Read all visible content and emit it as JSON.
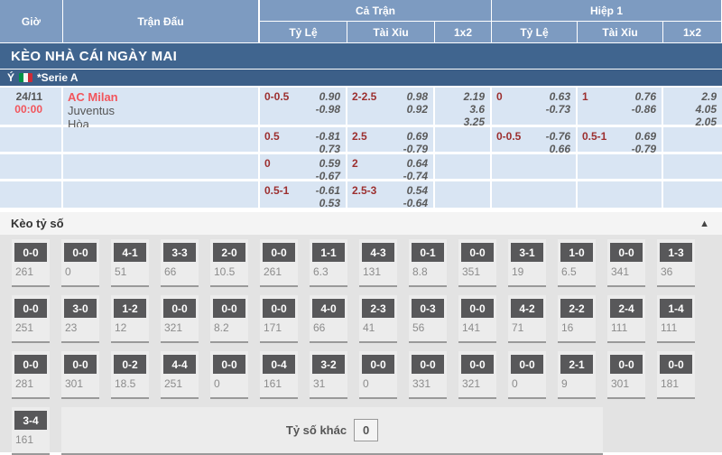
{
  "header": {
    "col_time": "Giờ",
    "col_match": "Trận Đấu",
    "group_full": "Cả Trận",
    "group_half": "Hiệp 1",
    "sub_odds": "Tỷ Lệ",
    "sub_ou": "Tài Xỉu",
    "sub_1x2": "1x2"
  },
  "banner": "KÈO NHÀ CÁI NGÀY MAI",
  "league": {
    "country": "Ý",
    "flag": "italy-flag",
    "name": "*Serie A"
  },
  "match": {
    "date": "24/11",
    "time": "00:00",
    "home": "AC Milan",
    "away": "Juventus",
    "draw_label": "Hòa"
  },
  "odds_rows": [
    {
      "ft_hdp": {
        "line": "0-0.5",
        "v1": "0.90",
        "v2": "-0.98"
      },
      "ft_ou": {
        "line": "2-2.5",
        "v1": "0.98",
        "v2": "0.92"
      },
      "ft_1x2": {
        "v1": "2.19",
        "v2": "3.6",
        "v3": "3.25"
      },
      "h1_hdp": {
        "line": "0",
        "v1": "0.63",
        "v2": "-0.73"
      },
      "h1_ou": {
        "line": "1",
        "v1": "0.76",
        "v2": "-0.86"
      },
      "h1_1x2": {
        "v1": "2.9",
        "v2": "4.05",
        "v3": "2.05"
      }
    },
    {
      "ft_hdp": {
        "line": "0.5",
        "v1": "-0.81",
        "v2": "0.73"
      },
      "ft_ou": {
        "line": "2.5",
        "v1": "0.69",
        "v2": "-0.79"
      },
      "h1_hdp": {
        "line": "0-0.5",
        "v1": "-0.76",
        "v2": "0.66"
      },
      "h1_ou": {
        "line": "0.5-1",
        "v1": "0.69",
        "v2": "-0.79"
      }
    },
    {
      "ft_hdp": {
        "line": "0",
        "v1": "0.59",
        "v2": "-0.67"
      },
      "ft_ou": {
        "line": "2",
        "v1": "0.64",
        "v2": "-0.74"
      }
    },
    {
      "ft_hdp": {
        "line": "0.5-1",
        "v1": "-0.61",
        "v2": "0.53"
      },
      "ft_ou": {
        "line": "2.5-3",
        "v1": "0.54",
        "v2": "-0.64"
      }
    }
  ],
  "score_section": {
    "title": "Kèo tỷ số",
    "collapse_icon": "▲",
    "other_label": "Tỷ số khác",
    "other_value": "0",
    "rows": [
      [
        {
          "s": "0-0",
          "o": "261"
        },
        {
          "s": "0-0",
          "o": "0"
        },
        {
          "s": "4-1",
          "o": "51"
        },
        {
          "s": "3-3",
          "o": "66"
        },
        {
          "s": "2-0",
          "o": "10.5"
        },
        {
          "s": "0-0",
          "o": "261"
        },
        {
          "s": "1-1",
          "o": "6.3"
        },
        {
          "s": "4-3",
          "o": "131"
        },
        {
          "s": "0-1",
          "o": "8.8"
        },
        {
          "s": "0-0",
          "o": "351"
        },
        {
          "s": "3-1",
          "o": "19"
        },
        {
          "s": "1-0",
          "o": "6.5"
        },
        {
          "s": "0-0",
          "o": "341"
        },
        {
          "s": "1-3",
          "o": "36"
        }
      ],
      [
        {
          "s": "0-0",
          "o": "251"
        },
        {
          "s": "3-0",
          "o": "23"
        },
        {
          "s": "1-2",
          "o": "12"
        },
        {
          "s": "0-0",
          "o": "321"
        },
        {
          "s": "0-0",
          "o": "8.2"
        },
        {
          "s": "0-0",
          "o": "171"
        },
        {
          "s": "4-0",
          "o": "66"
        },
        {
          "s": "2-3",
          "o": "41"
        },
        {
          "s": "0-3",
          "o": "56"
        },
        {
          "s": "0-0",
          "o": "141"
        },
        {
          "s": "4-2",
          "o": "71"
        },
        {
          "s": "2-2",
          "o": "16"
        },
        {
          "s": "2-4",
          "o": "111"
        },
        {
          "s": "1-4",
          "o": "111"
        }
      ],
      [
        {
          "s": "0-0",
          "o": "281"
        },
        {
          "s": "0-0",
          "o": "301"
        },
        {
          "s": "0-2",
          "o": "18.5"
        },
        {
          "s": "4-4",
          "o": "251"
        },
        {
          "s": "0-0",
          "o": "0"
        },
        {
          "s": "0-4",
          "o": "161"
        },
        {
          "s": "3-2",
          "o": "31"
        },
        {
          "s": "0-0",
          "o": "0"
        },
        {
          "s": "0-0",
          "o": "331"
        },
        {
          "s": "0-0",
          "o": "321"
        },
        {
          "s": "0-0",
          "o": "0"
        },
        {
          "s": "2-1",
          "o": "9"
        },
        {
          "s": "0-0",
          "o": "301"
        },
        {
          "s": "0-0",
          "o": "181"
        }
      ],
      [
        {
          "s": "3-4",
          "o": "161"
        }
      ]
    ]
  },
  "colors": {
    "header_blue": "#7d9bc1",
    "banner_blue": "#40658f",
    "league_blue": "#3c5f88",
    "row_blue": "#d9e5f3",
    "line_red": "#9c2f2f",
    "team_red": "#f2555c",
    "score_dark": "#58585a",
    "section_gray": "#e3e3e3"
  }
}
